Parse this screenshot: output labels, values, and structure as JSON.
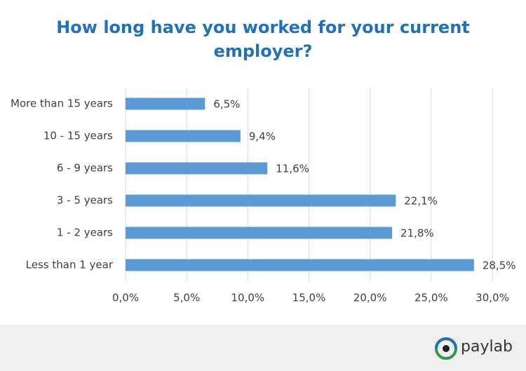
{
  "chart_data": {
    "type": "bar",
    "orientation": "horizontal",
    "title": "How long have you worked for your current employer?",
    "categories": [
      "More than 15 years",
      "10 - 15 years",
      "6 - 9 years",
      "3 - 5 years",
      "1 - 2 years",
      "Less than 1 year"
    ],
    "values": [
      6.5,
      9.4,
      11.6,
      22.1,
      21.8,
      28.5
    ],
    "value_labels": [
      "6,5%",
      "9,4%",
      "11,6%",
      "22,1%",
      "21,8%",
      "28,5%"
    ],
    "color": "#5b9bd5",
    "xlim": [
      0,
      30
    ],
    "xticks": [
      {
        "value": 0,
        "label": "0,0%"
      },
      {
        "value": 5,
        "label": "5,0%"
      },
      {
        "value": 10,
        "label": "10,0%"
      },
      {
        "value": 15,
        "label": "15,0%"
      },
      {
        "value": 20,
        "label": "20,0%"
      },
      {
        "value": 25,
        "label": "25,0%"
      },
      {
        "value": 30,
        "label": "30,0%"
      }
    ],
    "grid": true
  },
  "footer": {
    "brand": "paylab"
  }
}
